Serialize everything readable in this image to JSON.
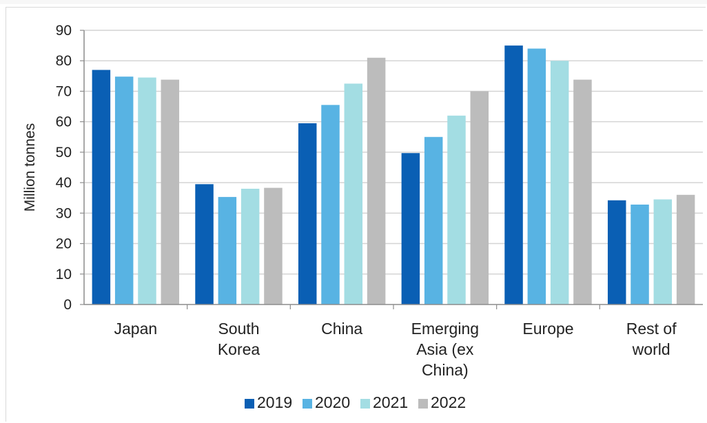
{
  "chart_data": {
    "type": "bar",
    "title": "",
    "xlabel": "",
    "ylabel": "Million tonnes",
    "ylim": [
      0,
      90
    ],
    "yticks": [
      0,
      10,
      20,
      30,
      40,
      50,
      60,
      70,
      80,
      90
    ],
    "grid": true,
    "legend_position": "bottom",
    "categories": [
      [
        "Japan"
      ],
      [
        "South",
        "Korea"
      ],
      [
        "China"
      ],
      [
        "Emerging",
        "Asia (ex",
        "China)"
      ],
      [
        "Europe"
      ],
      [
        "Rest of",
        "world"
      ]
    ],
    "series": [
      {
        "name": "2019",
        "color": "#0a5fb4",
        "values": [
          77,
          39.5,
          59.5,
          49.7,
          85,
          34.2
        ]
      },
      {
        "name": "2020",
        "color": "#58b3e3",
        "values": [
          74.8,
          35.3,
          65.5,
          55,
          84,
          32.8
        ]
      },
      {
        "name": "2021",
        "color": "#a3dde3",
        "values": [
          74.5,
          38,
          72.5,
          62,
          80,
          34.5
        ]
      },
      {
        "name": "2022",
        "color": "#bcbcbc",
        "values": [
          73.8,
          38.3,
          81,
          70,
          73.8,
          36
        ]
      }
    ]
  }
}
